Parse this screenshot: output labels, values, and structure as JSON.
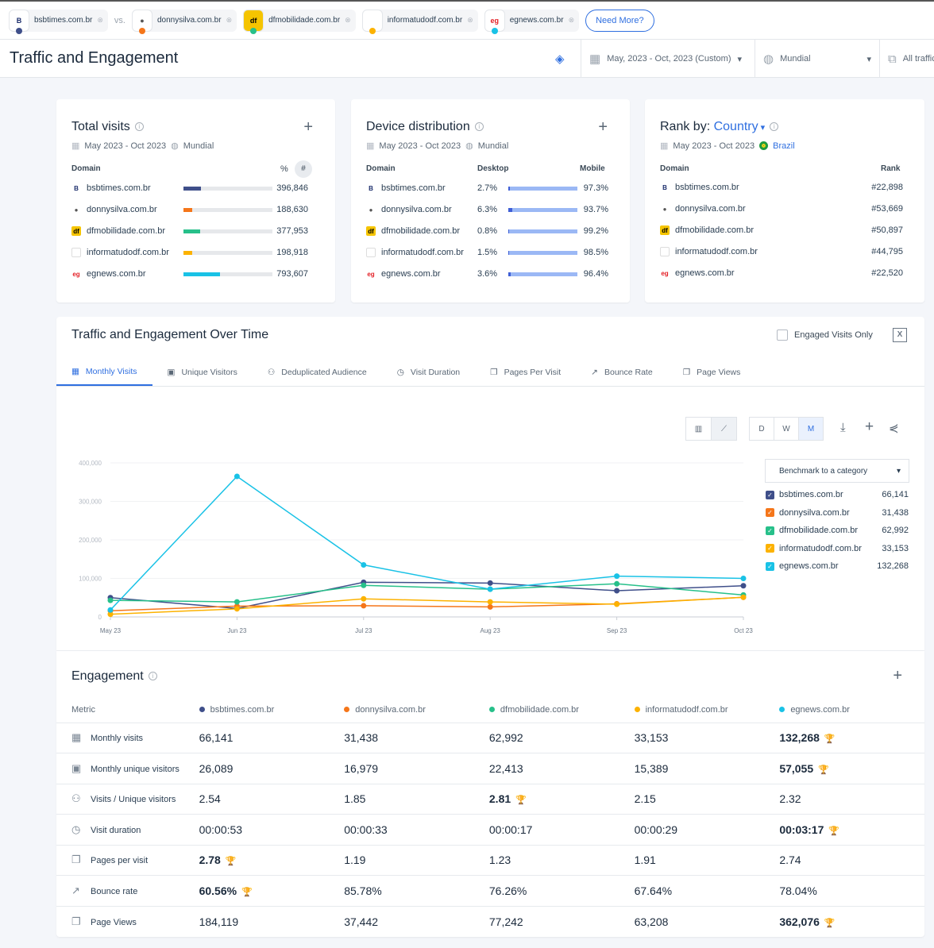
{
  "compare": {
    "vs": "vs.",
    "need_more": "Need More?",
    "sites": [
      {
        "name": "bsbtimes.com.br",
        "color": "#3f4f8a",
        "logo": "B",
        "logo_color": "#1a2c6b"
      },
      {
        "name": "donnysilva.com.br",
        "color": "#f5761a",
        "logo": "●",
        "logo_color": "#555"
      },
      {
        "name": "dfmobilidade.com.br",
        "color": "#27c08a",
        "logo": "df",
        "logo_color": "#000"
      },
      {
        "name": "informatudodf.com.br",
        "color": "#fcb200",
        "logo": "",
        "logo_color": "#ccc"
      },
      {
        "name": "egnews.com.br",
        "color": "#19c2e6",
        "logo": "eg",
        "logo_color": "#e31e24"
      }
    ]
  },
  "header": {
    "title": "Traffic and Engagement",
    "date_range": "May, 2023 - Oct, 2023 (Custom)",
    "region": "Mundial",
    "traffic": "All traffic"
  },
  "total_visits": {
    "title": "Total visits",
    "date": "May 2023 - Oct 2023",
    "region": "Mundial",
    "col_domain": "Domain",
    "col_pct": "%",
    "col_num": "#",
    "rows": [
      {
        "domain": "bsbtimes.com.br",
        "value": "396,846",
        "share": 0.2
      },
      {
        "domain": "donnysilva.com.br",
        "value": "188,630",
        "share": 0.1
      },
      {
        "domain": "dfmobilidade.com.br",
        "value": "377,953",
        "share": 0.19
      },
      {
        "domain": "informatudodf.com.br",
        "value": "198,918",
        "share": 0.1
      },
      {
        "domain": "egnews.com.br",
        "value": "793,607",
        "share": 0.41
      }
    ]
  },
  "device": {
    "title": "Device distribution",
    "date": "May 2023 - Oct 2023",
    "region": "Mundial",
    "col_domain": "Domain",
    "col_desktop": "Desktop",
    "col_mobile": "Mobile",
    "rows": [
      {
        "domain": "bsbtimes.com.br",
        "desktop": "2.7%",
        "mobile": "97.3%",
        "m": 0.973
      },
      {
        "domain": "donnysilva.com.br",
        "desktop": "6.3%",
        "mobile": "93.7%",
        "m": 0.937
      },
      {
        "domain": "dfmobilidade.com.br",
        "desktop": "0.8%",
        "mobile": "99.2%",
        "m": 0.992
      },
      {
        "domain": "informatudodf.com.br",
        "desktop": "1.5%",
        "mobile": "98.5%",
        "m": 0.985
      },
      {
        "domain": "egnews.com.br",
        "desktop": "3.6%",
        "mobile": "96.4%",
        "m": 0.964
      }
    ]
  },
  "rank": {
    "title": "Rank by:",
    "by": "Country",
    "date": "May 2023 - Oct 2023",
    "country": "Brazil",
    "col_domain": "Domain",
    "col_rank": "Rank",
    "rows": [
      {
        "domain": "bsbtimes.com.br",
        "rank": "#22,898"
      },
      {
        "domain": "donnysilva.com.br",
        "rank": "#53,669"
      },
      {
        "domain": "dfmobilidade.com.br",
        "rank": "#50,897"
      },
      {
        "domain": "informatudodf.com.br",
        "rank": "#44,795"
      },
      {
        "domain": "egnews.com.br",
        "rank": "#22,520"
      }
    ]
  },
  "over_time": {
    "title": "Traffic and Engagement Over Time",
    "engaged_only": "Engaged Visits Only",
    "tabs": [
      "Monthly Visits",
      "Unique Visitors",
      "Deduplicated Audience",
      "Visit Duration",
      "Pages Per Visit",
      "Bounce Rate",
      "Page Views"
    ],
    "granularity": [
      "D",
      "W",
      "M"
    ],
    "benchmark": "Benchmark to a category",
    "legend": [
      {
        "name": "bsbtimes.com.br",
        "value": "66,141"
      },
      {
        "name": "donnysilva.com.br",
        "value": "31,438"
      },
      {
        "name": "dfmobilidade.com.br",
        "value": "62,992"
      },
      {
        "name": "informatudodf.com.br",
        "value": "33,153"
      },
      {
        "name": "egnews.com.br",
        "value": "132,268"
      }
    ]
  },
  "chart_data": {
    "type": "line",
    "x": [
      "May 23",
      "Jun 23",
      "Jul 23",
      "Aug 23",
      "Sep 23",
      "Oct 23"
    ],
    "ylim": [
      0,
      400000
    ],
    "yticks": [
      "0",
      "100,000",
      "200,000",
      "300,000",
      "400,000"
    ],
    "series": [
      {
        "name": "bsbtimes.com.br",
        "color": "#3f4f8a",
        "values": [
          50000,
          22000,
          90000,
          88000,
          68000,
          81000
        ]
      },
      {
        "name": "donnysilva.com.br",
        "color": "#f5761a",
        "values": [
          16000,
          28000,
          29000,
          26000,
          34000,
          51000
        ]
      },
      {
        "name": "dfmobilidade.com.br",
        "color": "#27c08a",
        "values": [
          43000,
          39000,
          82000,
          72000,
          86000,
          57000
        ]
      },
      {
        "name": "informatudodf.com.br",
        "color": "#fcb200",
        "values": [
          7000,
          21000,
          47000,
          39000,
          33000,
          51000
        ]
      },
      {
        "name": "egnews.com.br",
        "color": "#19c2e6",
        "values": [
          18000,
          365000,
          135000,
          72000,
          106000,
          100000
        ]
      }
    ]
  },
  "engagement": {
    "title": "Engagement",
    "metric_col": "Metric",
    "rows": [
      {
        "metric": "Monthly visits",
        "icon": "▦",
        "values": [
          "66,141",
          "31,438",
          "62,992",
          "33,153",
          "132,268"
        ],
        "winner": 4
      },
      {
        "metric": "Monthly unique visitors",
        "icon": "▣",
        "values": [
          "26,089",
          "16,979",
          "22,413",
          "15,389",
          "57,055"
        ],
        "winner": 4
      },
      {
        "metric": "Visits / Unique visitors",
        "icon": "⚇",
        "values": [
          "2.54",
          "1.85",
          "2.81",
          "2.15",
          "2.32"
        ],
        "winner": 2
      },
      {
        "metric": "Visit duration",
        "icon": "◷",
        "values": [
          "00:00:53",
          "00:00:33",
          "00:00:17",
          "00:00:29",
          "00:03:17"
        ],
        "winner": 4
      },
      {
        "metric": "Pages per visit",
        "icon": "❐",
        "values": [
          "2.78",
          "1.19",
          "1.23",
          "1.91",
          "2.74"
        ],
        "winner": 0
      },
      {
        "metric": "Bounce rate",
        "icon": "↗",
        "values": [
          "60.56%",
          "85.78%",
          "76.26%",
          "67.64%",
          "78.04%"
        ],
        "winner": 0
      },
      {
        "metric": "Page Views",
        "icon": "❐",
        "values": [
          "184,119",
          "37,442",
          "77,242",
          "63,208",
          "362,076"
        ],
        "winner": 4
      }
    ]
  }
}
